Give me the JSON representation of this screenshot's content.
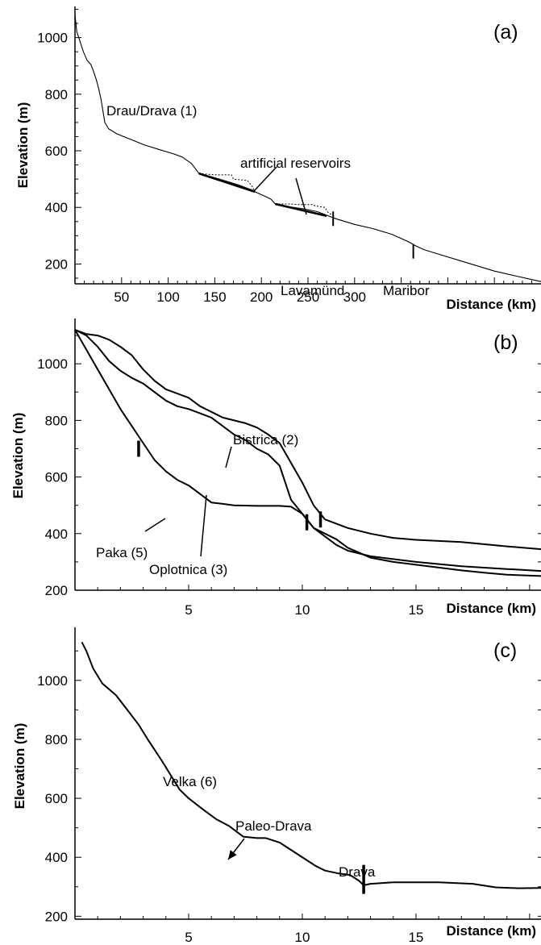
{
  "chart_data": [
    {
      "panel": "(a)",
      "type": "line",
      "xlabel": "Distance (km)",
      "ylabel": "Elevation (m)",
      "xlim": [
        0,
        500
      ],
      "ylim": [
        130,
        1110
      ],
      "xticks": [
        50,
        100,
        150,
        200,
        250,
        300
      ],
      "yticks": [
        200,
        400,
        600,
        800,
        1000
      ],
      "grid": false,
      "series": [
        {
          "name": "Drau/Drava (1)",
          "style": "thin",
          "points": [
            [
              0,
              1080
            ],
            [
              2,
              1020
            ],
            [
              5,
              990
            ],
            [
              9,
              950
            ],
            [
              13,
              920
            ],
            [
              17,
              905
            ],
            [
              20,
              880
            ],
            [
              23,
              850
            ],
            [
              25,
              825
            ],
            [
              28,
              780
            ],
            [
              32,
              700
            ],
            [
              36,
              678
            ],
            [
              45,
              660
            ],
            [
              60,
              640
            ],
            [
              75,
              620
            ],
            [
              90,
              605
            ],
            [
              105,
              590
            ],
            [
              115,
              578
            ],
            [
              125,
              555
            ],
            [
              133,
              520
            ],
            [
              150,
              505
            ],
            [
              175,
              480
            ],
            [
              191,
              460
            ],
            [
              193,
              455
            ],
            [
              200,
              445
            ],
            [
              210,
              430
            ],
            [
              215,
              412
            ],
            [
              225,
              405
            ],
            [
              245,
              395
            ],
            [
              260,
              385
            ],
            [
              268,
              375
            ],
            [
              280,
              360
            ],
            [
              300,
              340
            ],
            [
              320,
              325
            ],
            [
              340,
              305
            ],
            [
              350,
              290
            ],
            [
              360,
              275
            ],
            [
              365,
              265
            ],
            [
              375,
              250
            ],
            [
              390,
              235
            ],
            [
              410,
              215
            ],
            [
              430,
              195
            ],
            [
              450,
              175
            ],
            [
              470,
              160
            ],
            [
              490,
              145
            ],
            [
              500,
              138
            ]
          ]
        },
        {
          "name": "artificial reservoirs",
          "style": "dotted",
          "points": [
            [
              133,
              520
            ],
            [
              150,
              515
            ],
            [
              168,
              515
            ],
            [
              170,
              500
            ],
            [
              185,
              495
            ],
            [
              190,
              475
            ],
            [
              193,
              455
            ]
          ]
        },
        {
          "name": "artificial reservoirs",
          "style": "dotted",
          "points": [
            [
              215,
              412
            ],
            [
              230,
              412
            ],
            [
              240,
              410
            ],
            [
              255,
              410
            ],
            [
              258,
              405
            ],
            [
              268,
              400
            ],
            [
              270,
              390
            ],
            [
              272,
              380
            ],
            [
              275,
              375
            ]
          ]
        },
        {
          "name": "",
          "style": "thick",
          "points": [
            [
              133,
              520
            ],
            [
              193,
              455
            ]
          ]
        },
        {
          "name": "",
          "style": "thick",
          "points": [
            [
              215,
              412
            ],
            [
              270,
              370
            ]
          ]
        }
      ],
      "markers": [
        [
          277,
          360
        ],
        [
          363,
          245
        ]
      ],
      "annotations": [
        {
          "text": "Drau/Drava (1)"
        },
        {
          "text": "artificial reservoirs"
        },
        {
          "text": "Lavamünd"
        },
        {
          "text": "Maribor"
        }
      ],
      "xtick_labels": [
        "50",
        "100",
        "150",
        "200",
        "250",
        "300"
      ],
      "ytick_labels": [
        "200",
        "400",
        "600",
        "800",
        "1000"
      ]
    },
    {
      "panel": "(b)",
      "type": "line",
      "xlabel": "Distance (km)",
      "ylabel": "Elevation (m)",
      "xlim": [
        0,
        20.5
      ],
      "ylim": [
        200,
        1160
      ],
      "xticks": [
        5,
        10,
        15
      ],
      "yticks": [
        200,
        400,
        600,
        800,
        1000
      ],
      "grid": false,
      "series": [
        {
          "name": "Bistrica (2)",
          "points": [
            [
              0,
              1120
            ],
            [
              0.5,
              1105
            ],
            [
              1,
              1100
            ],
            [
              1.5,
              1085
            ],
            [
              2,
              1060
            ],
            [
              2.5,
              1030
            ],
            [
              3,
              980
            ],
            [
              3.5,
              940
            ],
            [
              4,
              910
            ],
            [
              5,
              880
            ],
            [
              5.5,
              850
            ],
            [
              6,
              830
            ],
            [
              6.5,
              810
            ],
            [
              7,
              800
            ],
            [
              7.5,
              790
            ],
            [
              8,
              775
            ],
            [
              8.5,
              750
            ],
            [
              9,
              720
            ],
            [
              9.5,
              650
            ],
            [
              10,
              580
            ],
            [
              10.5,
              500
            ],
            [
              11,
              450
            ],
            [
              12,
              420
            ],
            [
              13,
              400
            ],
            [
              14,
              385
            ],
            [
              15,
              378
            ],
            [
              17,
              370
            ],
            [
              19,
              355
            ],
            [
              20.5,
              345
            ]
          ]
        },
        {
          "name": "Oplotnica (3)",
          "points": [
            [
              0,
              1120
            ],
            [
              0.5,
              1100
            ],
            [
              1,
              1060
            ],
            [
              1.5,
              1010
            ],
            [
              2,
              975
            ],
            [
              2.5,
              950
            ],
            [
              3,
              930
            ],
            [
              3.5,
              900
            ],
            [
              4,
              870
            ],
            [
              4.5,
              850
            ],
            [
              5,
              840
            ],
            [
              5.5,
              825
            ],
            [
              6,
              810
            ],
            [
              6.5,
              780
            ],
            [
              7,
              750
            ],
            [
              7.5,
              730
            ],
            [
              8,
              700
            ],
            [
              8.5,
              680
            ],
            [
              9,
              640
            ],
            [
              9.5,
              520
            ],
            [
              10,
              470
            ],
            [
              10.5,
              420
            ],
            [
              11,
              390
            ],
            [
              11.5,
              360
            ],
            [
              12,
              340
            ],
            [
              13,
              320
            ],
            [
              14,
              310
            ],
            [
              15,
              300
            ],
            [
              17,
              285
            ],
            [
              19,
              275
            ],
            [
              20.5,
              268
            ]
          ]
        },
        {
          "name": "Paka (5)",
          "points": [
            [
              0,
              1120
            ],
            [
              0.5,
              1050
            ],
            [
              1,
              980
            ],
            [
              1.5,
              910
            ],
            [
              2,
              840
            ],
            [
              2.5,
              780
            ],
            [
              3,
              720
            ],
            [
              3.5,
              660
            ],
            [
              4,
              620
            ],
            [
              4.5,
              590
            ],
            [
              5,
              570
            ],
            [
              5.5,
              540
            ],
            [
              6,
              510
            ],
            [
              6.5,
              505
            ],
            [
              7,
              500
            ],
            [
              8,
              498
            ],
            [
              9,
              498
            ],
            [
              9.5,
              495
            ],
            [
              10,
              470
            ],
            [
              10.5,
              420
            ],
            [
              11,
              400
            ],
            [
              11.5,
              380
            ],
            [
              12,
              350
            ],
            [
              13,
              315
            ],
            [
              14,
              300
            ],
            [
              15,
              290
            ],
            [
              16,
              280
            ],
            [
              17,
              270
            ],
            [
              18,
              262
            ],
            [
              19,
              255
            ],
            [
              20.5,
              250
            ]
          ]
        }
      ],
      "markers": [
        [
          2.8,
          700
        ],
        [
          10.2,
          440
        ],
        [
          10.8,
          450
        ]
      ],
      "annotations": [
        {
          "text": "Bistrica (2)"
        },
        {
          "text": "Oplotnica (3)"
        },
        {
          "text": "Paka (5)"
        }
      ],
      "xtick_labels": [
        "5",
        "10",
        "15"
      ],
      "ytick_labels": [
        "200",
        "400",
        "600",
        "800",
        "1000"
      ]
    },
    {
      "panel": "(c)",
      "type": "line",
      "xlabel": "Distance (km)",
      "ylabel": "Elevation (m)",
      "xlim": [
        0,
        20.5
      ],
      "ylim": [
        190,
        1180
      ],
      "xticks": [
        5,
        10,
        15
      ],
      "yticks": [
        200,
        400,
        600,
        800,
        1000
      ],
      "grid": false,
      "series": [
        {
          "name": "Velka (6)",
          "points": [
            [
              0.3,
              1130
            ],
            [
              0.5,
              1100
            ],
            [
              0.8,
              1040
            ],
            [
              1.2,
              990
            ],
            [
              1.8,
              950
            ],
            [
              2.4,
              890
            ],
            [
              2.8,
              850
            ],
            [
              3.2,
              800
            ],
            [
              3.8,
              730
            ],
            [
              4.2,
              680
            ],
            [
              4.6,
              630
            ],
            [
              5,
              600
            ],
            [
              5.5,
              570
            ],
            [
              6.2,
              530
            ],
            [
              6.8,
              505
            ],
            [
              7.4,
              470
            ],
            [
              8,
              465
            ],
            [
              8.4,
              465
            ],
            [
              9,
              450
            ],
            [
              9.6,
              420
            ],
            [
              10.2,
              390
            ],
            [
              10.6,
              370
            ],
            [
              11,
              355
            ],
            [
              11.6,
              345
            ],
            [
              12.1,
              340
            ],
            [
              12.3,
              330
            ],
            [
              12.5,
              320
            ],
            [
              12.7,
              305
            ],
            [
              13,
              310
            ],
            [
              14,
              315
            ],
            [
              16,
              315
            ],
            [
              17.5,
              310
            ],
            [
              18.5,
              298
            ],
            [
              19.5,
              295
            ],
            [
              20.5,
              296
            ]
          ]
        }
      ],
      "markers": [
        [
          12.7,
          325
        ]
      ],
      "annotations": [
        {
          "text": "Velka (6)"
        },
        {
          "text": "Paleo-Drava"
        },
        {
          "text": "Drava"
        }
      ],
      "xtick_labels": [
        "5",
        "10",
        "15"
      ],
      "ytick_labels": [
        "200",
        "400",
        "600",
        "800",
        "1000"
      ]
    }
  ]
}
